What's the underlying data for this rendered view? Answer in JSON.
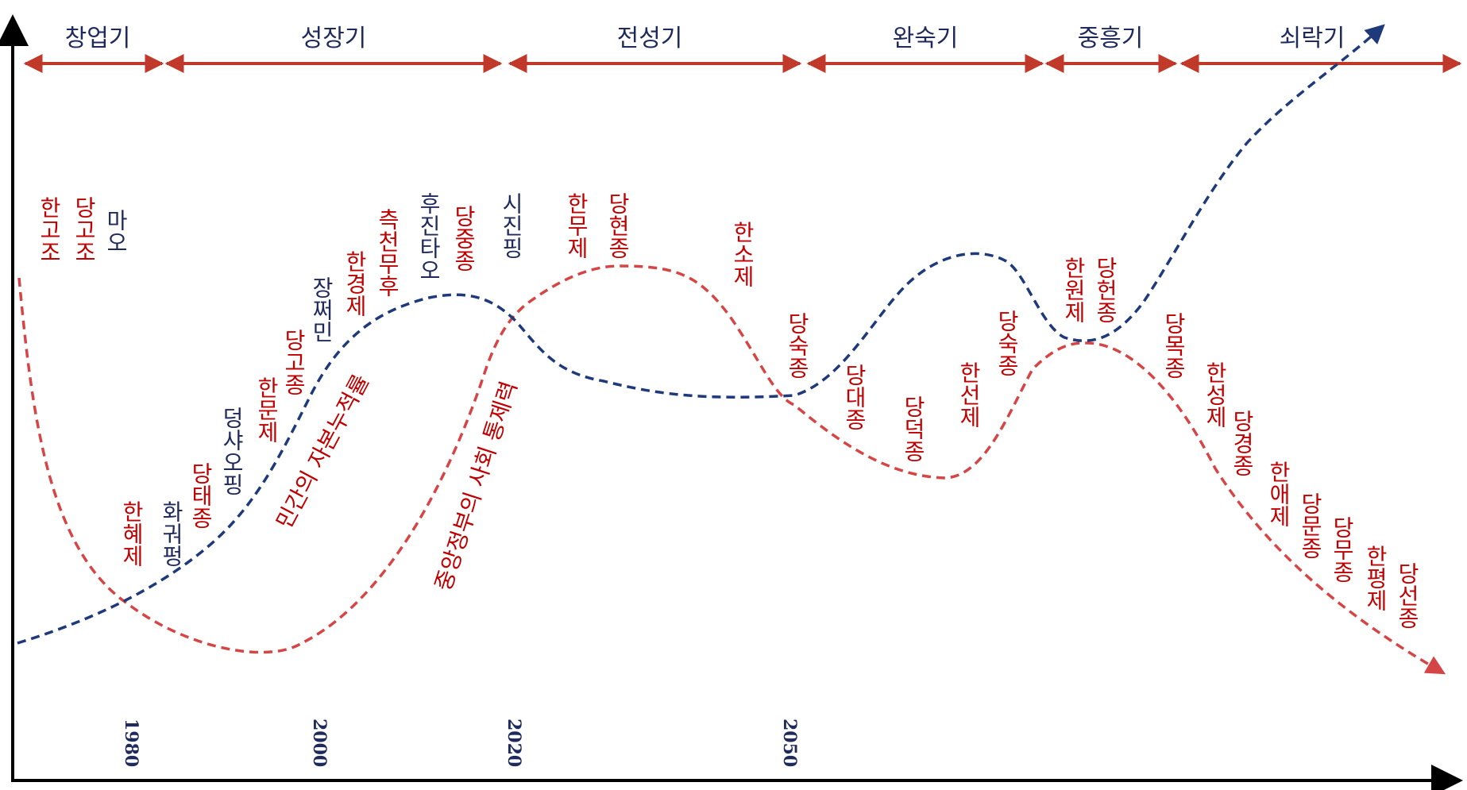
{
  "colors": {
    "red": "#c00000",
    "navy": "#1f2a5c",
    "redCurve": "#d64545",
    "navyCurve": "#1f3a7a"
  },
  "eras": [
    "창업기",
    "성장기",
    "전성기",
    "완숙기",
    "중흥기",
    "쇠락기"
  ],
  "years": [
    "1980",
    "2000",
    "2020",
    "2050"
  ],
  "curve_labels": {
    "red_curve": "중앙정부의 사회 통제력",
    "navy_curve": "민간의 자본누적률"
  },
  "names": {
    "han_gojo": "한고조",
    "dang_gojo": "당고조",
    "mao": "마오",
    "han_hyeje": "한혜제",
    "hua_guofeng": "화궈펑",
    "dang_taejong": "당태종",
    "deng": "덩샤오핑",
    "han_munje": "한문제",
    "dang_gojong": "당고종",
    "jiang": "장쩌민",
    "han_gyeongje": "한경제",
    "wu_zetian": "측천무후",
    "hu": "후진타오",
    "dang_jungjong": "당중종",
    "xi": "시진핑",
    "han_muje": "한무제",
    "dang_hyeonjong": "당현종",
    "han_soje": "한소제",
    "dang_sukjong": "당숙종",
    "dang_daejong": "당대종",
    "dang_deokjong": "당덕종",
    "han_seonje": "한선제",
    "dang_sunjong": "당숙종",
    "han_wonje": "한원제",
    "dang_heonjong": "당헌종",
    "dang_mokjong": "당목종",
    "han_seongje": "한성제",
    "dang_gyeongjong": "당경종",
    "han_aeje": "한애제",
    "dang_munjong": "당문종",
    "dang_mujong": "당무종",
    "han_pyeongje": "한평제",
    "dang_seonjong": "당선종"
  }
}
